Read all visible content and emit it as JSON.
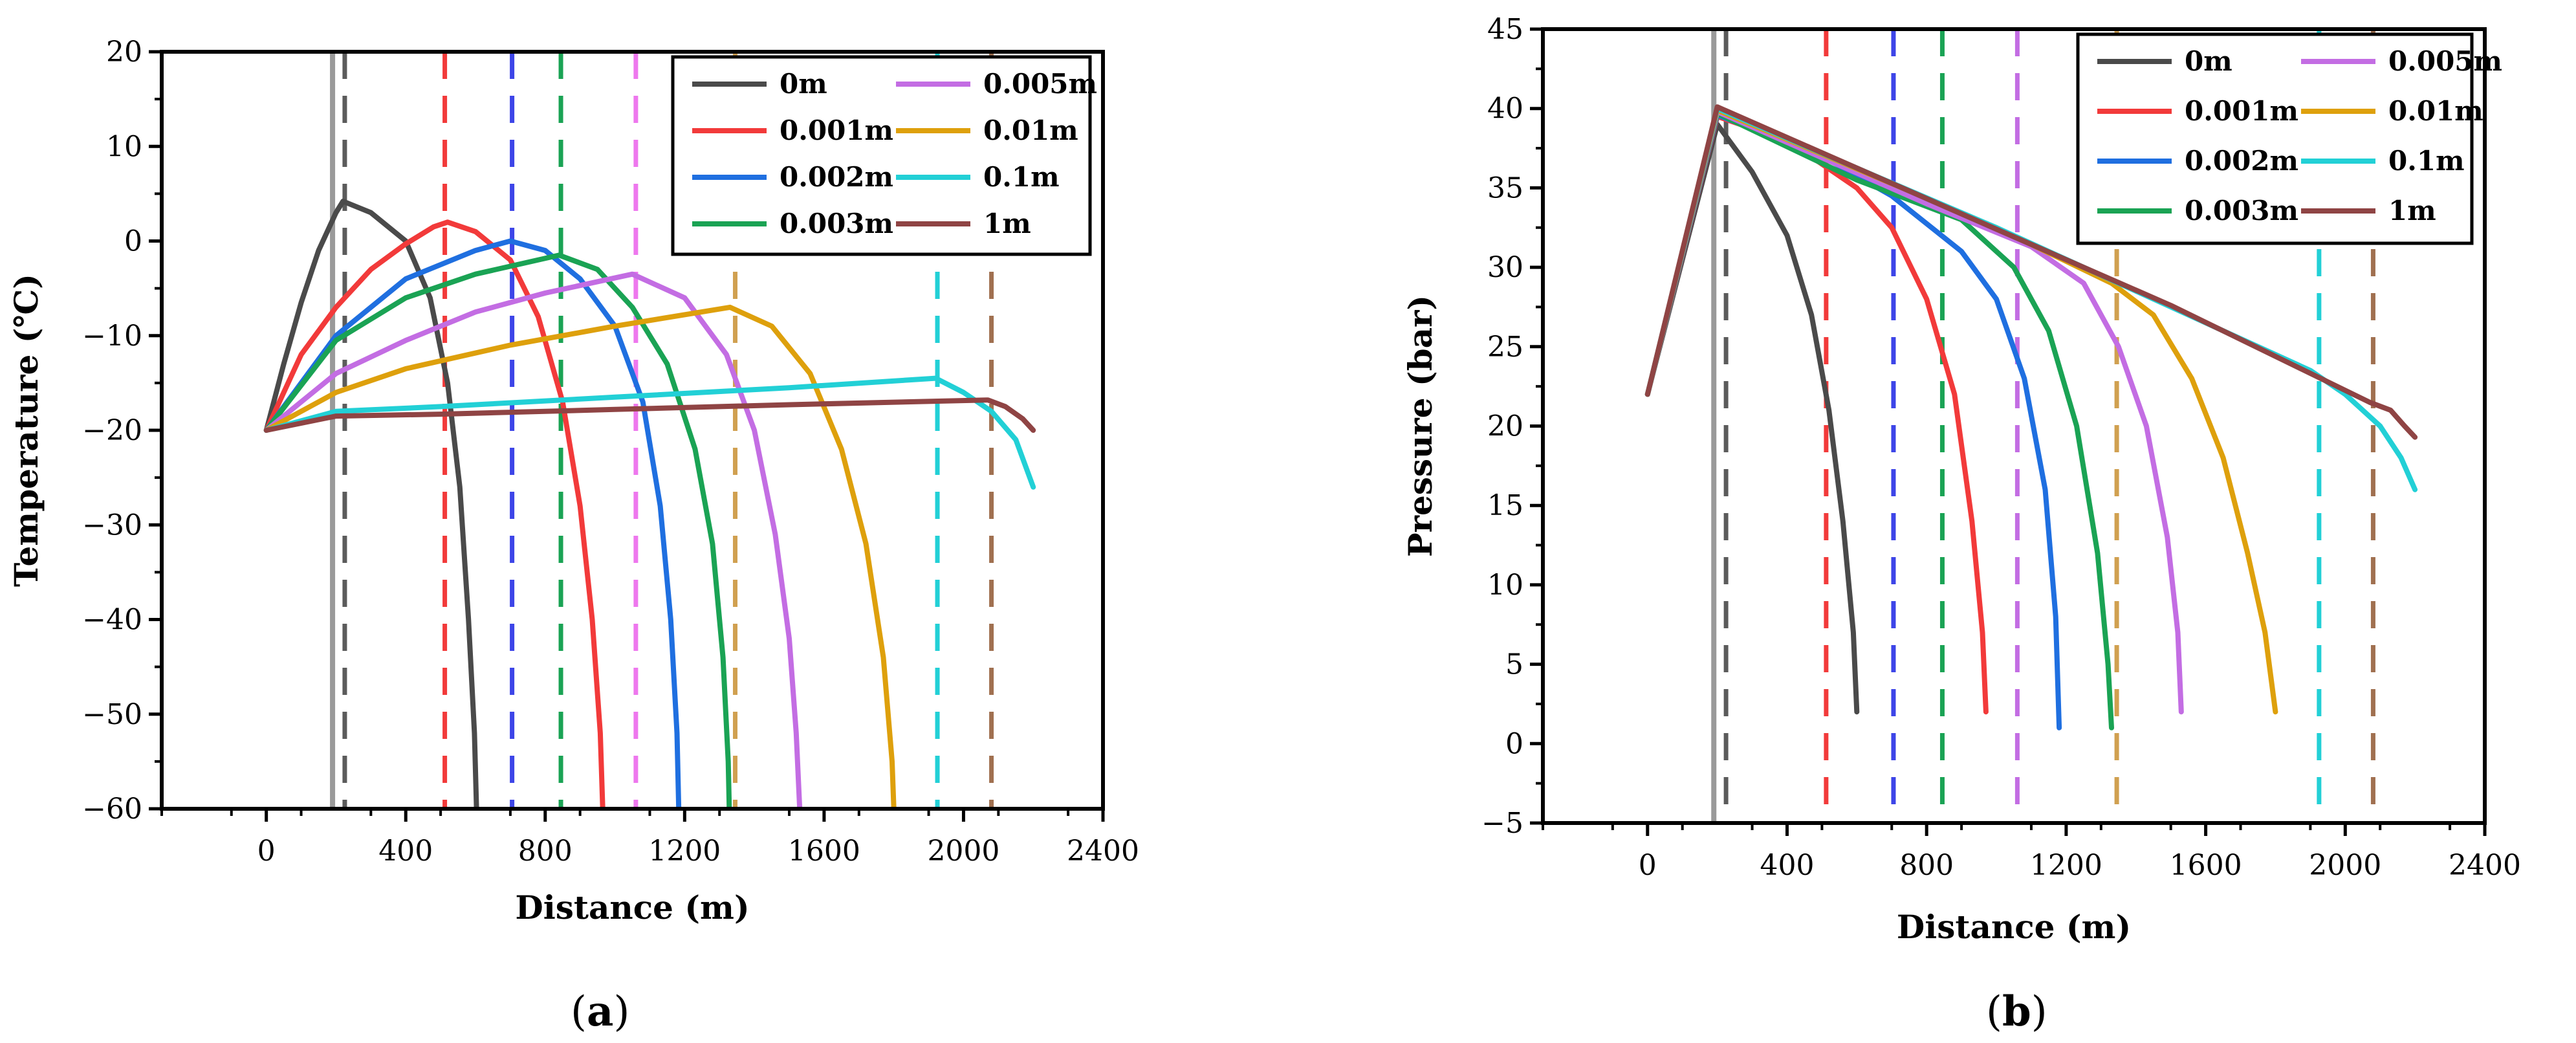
{
  "chart_data": [
    {
      "id": "a",
      "type": "line",
      "panel_label": "(a)",
      "panel_letter": "a",
      "xlabel": "Distance (m)",
      "ylabel": "Temperature (℃)",
      "xlim": [
        -300,
        2400
      ],
      "ylim": [
        -60,
        20
      ],
      "xticks": [
        0,
        400,
        800,
        1200,
        1600,
        2000,
        2400
      ],
      "yticks": [
        20,
        10,
        0,
        -10,
        -20,
        -30,
        -40,
        -50,
        -60
      ],
      "xtick_labels": [
        "0",
        "400",
        "800",
        "1200",
        "1600",
        "2000",
        "2400"
      ],
      "ytick_labels": [
        "20",
        "10",
        "0",
        "−10",
        "−20",
        "−30",
        "−40",
        "−50",
        "−60"
      ],
      "legend_position": "top-right",
      "series": [
        {
          "name": "0m",
          "color": "#4a4a4a",
          "points": [
            [
              0,
              -20
            ],
            [
              50,
              -13
            ],
            [
              100,
              -6.5
            ],
            [
              150,
              -1
            ],
            [
              200,
              3
            ],
            [
              220,
              4.2
            ],
            [
              300,
              3
            ],
            [
              400,
              0
            ],
            [
              470,
              -6
            ],
            [
              520,
              -15
            ],
            [
              555,
              -26
            ],
            [
              580,
              -40
            ],
            [
              597,
              -52
            ],
            [
              603,
              -60
            ]
          ]
        },
        {
          "name": "0.001m",
          "color": "#f23a3a",
          "points": [
            [
              0,
              -20
            ],
            [
              100,
              -12
            ],
            [
              200,
              -7
            ],
            [
              300,
              -3
            ],
            [
              400,
              -0.3
            ],
            [
              480,
              1.5
            ],
            [
              520,
              2
            ],
            [
              600,
              1
            ],
            [
              700,
              -2
            ],
            [
              780,
              -8
            ],
            [
              850,
              -17
            ],
            [
              900,
              -28
            ],
            [
              935,
              -40
            ],
            [
              958,
              -52
            ],
            [
              965,
              -60
            ]
          ]
        },
        {
          "name": "0.002m",
          "color": "#1f6fe0",
          "points": [
            [
              0,
              -20
            ],
            [
              200,
              -10
            ],
            [
              400,
              -4
            ],
            [
              600,
              -1
            ],
            [
              700,
              0
            ],
            [
              800,
              -1
            ],
            [
              900,
              -4
            ],
            [
              1000,
              -9
            ],
            [
              1080,
              -17
            ],
            [
              1130,
              -28
            ],
            [
              1160,
              -40
            ],
            [
              1178,
              -52
            ],
            [
              1183,
              -60
            ]
          ]
        },
        {
          "name": "0.003m",
          "color": "#1aa354",
          "points": [
            [
              0,
              -20
            ],
            [
              200,
              -10.5
            ],
            [
              400,
              -6
            ],
            [
              600,
              -3.5
            ],
            [
              840,
              -1.5
            ],
            [
              950,
              -3
            ],
            [
              1050,
              -7
            ],
            [
              1150,
              -13
            ],
            [
              1230,
              -22
            ],
            [
              1280,
              -32
            ],
            [
              1310,
              -44
            ],
            [
              1325,
              -55
            ],
            [
              1328,
              -60
            ]
          ]
        },
        {
          "name": "0.005m",
          "color": "#c36de3",
          "points": [
            [
              0,
              -20
            ],
            [
              200,
              -14
            ],
            [
              400,
              -10.5
            ],
            [
              600,
              -7.5
            ],
            [
              800,
              -5.5
            ],
            [
              1050,
              -3.5
            ],
            [
              1200,
              -6
            ],
            [
              1320,
              -12
            ],
            [
              1400,
              -20
            ],
            [
              1460,
              -31
            ],
            [
              1500,
              -42
            ],
            [
              1520,
              -52
            ],
            [
              1530,
              -60
            ]
          ]
        },
        {
          "name": "0.01m",
          "color": "#dea00c",
          "points": [
            [
              0,
              -20
            ],
            [
              200,
              -16
            ],
            [
              400,
              -13.5
            ],
            [
              700,
              -11
            ],
            [
              1000,
              -9
            ],
            [
              1330,
              -7
            ],
            [
              1450,
              -9
            ],
            [
              1560,
              -14
            ],
            [
              1650,
              -22
            ],
            [
              1720,
              -32
            ],
            [
              1770,
              -44
            ],
            [
              1795,
              -55
            ],
            [
              1800,
              -60
            ]
          ]
        },
        {
          "name": "0.1m",
          "color": "#22d0d6",
          "points": [
            [
              0,
              -20
            ],
            [
              200,
              -18
            ],
            [
              500,
              -17.5
            ],
            [
              1000,
              -16.5
            ],
            [
              1500,
              -15.5
            ],
            [
              1920,
              -14.5
            ],
            [
              2000,
              -16
            ],
            [
              2080,
              -18
            ],
            [
              2150,
              -21
            ],
            [
              2200,
              -26
            ]
          ]
        },
        {
          "name": "1m",
          "color": "#8f4444",
          "points": [
            [
              0,
              -20
            ],
            [
              200,
              -18.5
            ],
            [
              500,
              -18.3
            ],
            [
              1000,
              -17.8
            ],
            [
              1500,
              -17.3
            ],
            [
              2070,
              -16.8
            ],
            [
              2120,
              -17.5
            ],
            [
              2170,
              -18.8
            ],
            [
              2200,
              -20
            ]
          ]
        }
      ],
      "vlines": [
        {
          "x": 190,
          "color": "#9a9a9a",
          "style": "solid"
        },
        {
          "x": 225,
          "color": "#5b5b5b",
          "style": "dashed"
        },
        {
          "x": 512,
          "color": "#f23a3a",
          "style": "dashed"
        },
        {
          "x": 705,
          "color": "#3d45e8",
          "style": "dashed"
        },
        {
          "x": 845,
          "color": "#1aa354",
          "style": "dashed"
        },
        {
          "x": 1060,
          "color": "#ee77ee",
          "style": "dashed"
        },
        {
          "x": 1345,
          "color": "#d0a050",
          "style": "dashed"
        },
        {
          "x": 1925,
          "color": "#22d0d6",
          "style": "dashed"
        },
        {
          "x": 2080,
          "color": "#a07050",
          "style": "dashed"
        }
      ]
    },
    {
      "id": "b",
      "type": "line",
      "panel_label": "(b)",
      "panel_letter": "b",
      "xlabel": "Distance (m)",
      "ylabel": "Pressure (bar)",
      "xlim": [
        -300,
        2400
      ],
      "ylim": [
        -5,
        45
      ],
      "xticks": [
        0,
        400,
        800,
        1200,
        1600,
        2000,
        2400
      ],
      "yticks": [
        45,
        40,
        35,
        30,
        25,
        20,
        15,
        10,
        5,
        0,
        -5
      ],
      "xtick_labels": [
        "0",
        "400",
        "800",
        "1200",
        "1600",
        "2000",
        "2400"
      ],
      "ytick_labels": [
        "45",
        "40",
        "35",
        "30",
        "25",
        "20",
        "15",
        "10",
        "5",
        "0",
        "−5"
      ],
      "legend_position": "top-right",
      "series": [
        {
          "name": "0m",
          "color": "#4a4a4a",
          "points": [
            [
              0,
              22
            ],
            [
              200,
              39
            ],
            [
              300,
              36
            ],
            [
              400,
              32
            ],
            [
              470,
              27
            ],
            [
              520,
              21
            ],
            [
              560,
              14
            ],
            [
              590,
              7
            ],
            [
              600,
              2
            ]
          ]
        },
        {
          "name": "0.001m",
          "color": "#f23a3a",
          "points": [
            [
              0,
              22
            ],
            [
              200,
              39.5
            ],
            [
              400,
              38
            ],
            [
              600,
              35
            ],
            [
              700,
              32.5
            ],
            [
              800,
              28
            ],
            [
              880,
              22
            ],
            [
              930,
              14
            ],
            [
              960,
              7
            ],
            [
              970,
              2
            ]
          ]
        },
        {
          "name": "0.002m",
          "color": "#1f6fe0",
          "points": [
            [
              0,
              22
            ],
            [
              200,
              39.6
            ],
            [
              500,
              37
            ],
            [
              700,
              34.5
            ],
            [
              900,
              31
            ],
            [
              1000,
              28
            ],
            [
              1080,
              23
            ],
            [
              1140,
              16
            ],
            [
              1170,
              8
            ],
            [
              1180,
              1
            ]
          ]
        },
        {
          "name": "0.003m",
          "color": "#1aa354",
          "points": [
            [
              0,
              22
            ],
            [
              200,
              39.7
            ],
            [
              600,
              35.5
            ],
            [
              900,
              33
            ],
            [
              1050,
              30
            ],
            [
              1150,
              26
            ],
            [
              1230,
              20
            ],
            [
              1290,
              12
            ],
            [
              1320,
              5
            ],
            [
              1330,
              1
            ]
          ]
        },
        {
          "name": "0.005m",
          "color": "#c36de3",
          "points": [
            [
              0,
              22
            ],
            [
              200,
              39.8
            ],
            [
              800,
              34
            ],
            [
              1100,
              31.3
            ],
            [
              1250,
              29
            ],
            [
              1350,
              25
            ],
            [
              1430,
              20
            ],
            [
              1490,
              13
            ],
            [
              1520,
              7
            ],
            [
              1530,
              2
            ]
          ]
        },
        {
          "name": "0.01m",
          "color": "#dea00c",
          "points": [
            [
              0,
              22
            ],
            [
              200,
              39.9
            ],
            [
              1000,
              32.5
            ],
            [
              1330,
              29
            ],
            [
              1450,
              27
            ],
            [
              1560,
              23
            ],
            [
              1650,
              18
            ],
            [
              1720,
              12
            ],
            [
              1770,
              7
            ],
            [
              1800,
              2
            ]
          ]
        },
        {
          "name": "0.1m",
          "color": "#22d0d6",
          "points": [
            [
              0,
              22
            ],
            [
              200,
              40
            ],
            [
              1000,
              32.5
            ],
            [
              1500,
              27.5
            ],
            [
              1900,
              23.5
            ],
            [
              2000,
              22
            ],
            [
              2100,
              20
            ],
            [
              2160,
              18
            ],
            [
              2200,
              16
            ]
          ]
        },
        {
          "name": "1m",
          "color": "#8f4444",
          "points": [
            [
              0,
              22
            ],
            [
              200,
              40.1
            ],
            [
              1000,
              32.4
            ],
            [
              1500,
              27.6
            ],
            [
              2070,
              21.5
            ],
            [
              2130,
              21
            ],
            [
              2170,
              20
            ],
            [
              2200,
              19.3
            ]
          ]
        }
      ],
      "vlines": [
        {
          "x": 190,
          "color": "#9a9a9a",
          "style": "solid"
        },
        {
          "x": 225,
          "color": "#5b5b5b",
          "style": "dashed"
        },
        {
          "x": 512,
          "color": "#f23a3a",
          "style": "dashed"
        },
        {
          "x": 705,
          "color": "#3d45e8",
          "style": "dashed"
        },
        {
          "x": 845,
          "color": "#1aa354",
          "style": "dashed"
        },
        {
          "x": 1060,
          "color": "#c36de3",
          "style": "dashed"
        },
        {
          "x": 1345,
          "color": "#d0a050",
          "style": "dashed"
        },
        {
          "x": 1925,
          "color": "#22d0d6",
          "style": "dashed"
        },
        {
          "x": 2080,
          "color": "#a07050",
          "style": "dashed"
        }
      ]
    }
  ]
}
